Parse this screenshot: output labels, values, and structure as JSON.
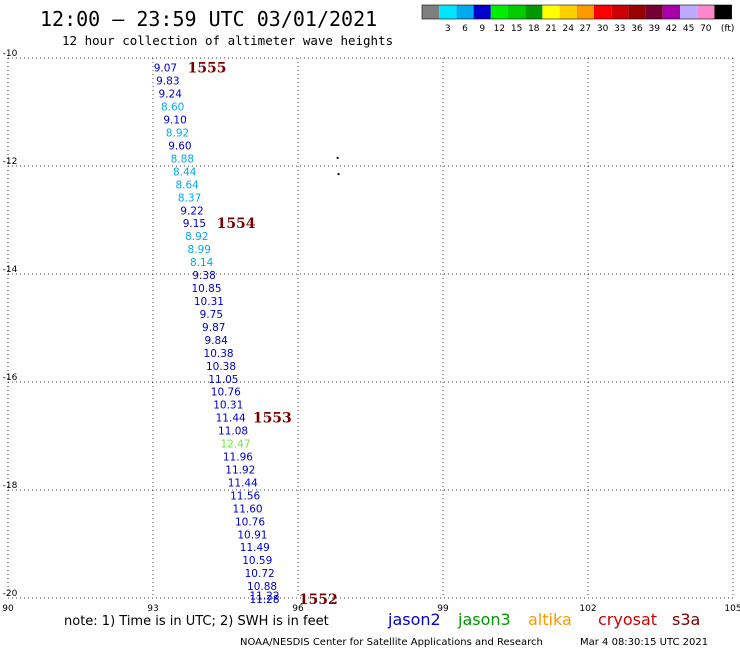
{
  "header": {
    "title": "12:00 – 23:59 UTC 03/01/2021",
    "subtitle": "12 hour collection of altimeter wave heights"
  },
  "color_scale": {
    "unit": "(ft)",
    "bins": [
      {
        "label": "",
        "color": "#7f7f7f"
      },
      {
        "label": "3",
        "color": "#00e5ff"
      },
      {
        "label": "6",
        "color": "#00aaee"
      },
      {
        "label": "9",
        "color": "#0000cc"
      },
      {
        "label": "12",
        "color": "#00ee00"
      },
      {
        "label": "15",
        "color": "#00cc00"
      },
      {
        "label": "18",
        "color": "#009900"
      },
      {
        "label": "21",
        "color": "#ffff00"
      },
      {
        "label": "24",
        "color": "#ffd000"
      },
      {
        "label": "27",
        "color": "#ff9900"
      },
      {
        "label": "30",
        "color": "#ff0000"
      },
      {
        "label": "33",
        "color": "#cc0000"
      },
      {
        "label": "36",
        "color": "#990000"
      },
      {
        "label": "39",
        "color": "#770033"
      },
      {
        "label": "42",
        "color": "#aa00aa"
      },
      {
        "label": "45",
        "color": "#bbaaff"
      },
      {
        "label": "70",
        "color": "#ff88cc"
      },
      {
        "label": "",
        "color": "#000000"
      }
    ]
  },
  "footer": {
    "note": "note: 1) Time is in UTC; 2) SWH is in feet",
    "credit": "NOAA/NESDIS Center for Satellite Applications and Research",
    "timestamp": "Mar  4 08:30:15 UTC 2021",
    "satellites": [
      {
        "name": "jason2",
        "color": "#0000cc"
      },
      {
        "name": "jason3",
        "color": "#009900"
      },
      {
        "name": "altika",
        "color": "#ff9900"
      },
      {
        "name": "cryosat",
        "color": "#cc0000"
      },
      {
        "name": "s3a",
        "color": "#7a0000"
      }
    ]
  },
  "chart_data": {
    "type": "scatter",
    "title": "12:00 – 23:59 UTC 03/01/2021",
    "subtitle": "12 hour collection of altimeter wave heights",
    "xlim": [
      90,
      105
    ],
    "ylim": [
      -20,
      -10
    ],
    "x_ticks": [
      90,
      93,
      96,
      99,
      102,
      105
    ],
    "y_ticks": [
      -10,
      -12,
      -14,
      -16,
      -18,
      -20
    ],
    "grid": true,
    "points": [
      {
        "lon": 93.05,
        "lat": -10.18,
        "swh": 9.07,
        "color": "#0000cc"
      },
      {
        "lon": 93.1,
        "lat": -10.42,
        "swh": 9.83,
        "color": "#0000cc"
      },
      {
        "lon": 93.15,
        "lat": -10.66,
        "swh": 9.24,
        "color": "#0000cc"
      },
      {
        "lon": 93.2,
        "lat": -10.9,
        "swh": 8.6,
        "color": "#00aaee"
      },
      {
        "lon": 93.25,
        "lat": -11.14,
        "swh": 9.1,
        "color": "#0000cc"
      },
      {
        "lon": 93.3,
        "lat": -11.38,
        "swh": 8.92,
        "color": "#00aaee"
      },
      {
        "lon": 93.35,
        "lat": -11.62,
        "swh": 9.6,
        "color": "#0000cc"
      },
      {
        "lon": 93.4,
        "lat": -11.86,
        "swh": 8.88,
        "color": "#00aaee"
      },
      {
        "lon": 93.45,
        "lat": -12.1,
        "swh": 8.44,
        "color": "#00aaee"
      },
      {
        "lon": 93.5,
        "lat": -12.34,
        "swh": 8.64,
        "color": "#00aaee"
      },
      {
        "lon": 93.55,
        "lat": -12.58,
        "swh": 8.37,
        "color": "#00aaee"
      },
      {
        "lon": 93.6,
        "lat": -12.82,
        "swh": 9.22,
        "color": "#0000cc"
      },
      {
        "lon": 93.65,
        "lat": -13.06,
        "swh": 9.15,
        "color": "#0000cc"
      },
      {
        "lon": 93.7,
        "lat": -13.3,
        "swh": 8.92,
        "color": "#00aaee"
      },
      {
        "lon": 93.75,
        "lat": -13.54,
        "swh": 8.99,
        "color": "#00aaee"
      },
      {
        "lon": 93.8,
        "lat": -13.78,
        "swh": 8.14,
        "color": "#00aaee"
      },
      {
        "lon": 93.85,
        "lat": -14.02,
        "swh": 9.38,
        "color": "#0000cc"
      },
      {
        "lon": 93.9,
        "lat": -14.26,
        "swh": 10.85,
        "color": "#0000cc"
      },
      {
        "lon": 93.95,
        "lat": -14.5,
        "swh": 10.31,
        "color": "#0000cc"
      },
      {
        "lon": 94.0,
        "lat": -14.74,
        "swh": 9.75,
        "color": "#0000cc"
      },
      {
        "lon": 94.05,
        "lat": -14.98,
        "swh": 9.87,
        "color": "#0000cc"
      },
      {
        "lon": 94.1,
        "lat": -15.22,
        "swh": 9.84,
        "color": "#0000cc"
      },
      {
        "lon": 94.15,
        "lat": -15.46,
        "swh": 10.38,
        "color": "#0000cc"
      },
      {
        "lon": 94.2,
        "lat": -15.7,
        "swh": 10.38,
        "color": "#0000cc"
      },
      {
        "lon": 94.25,
        "lat": -15.94,
        "swh": 11.05,
        "color": "#0000cc"
      },
      {
        "lon": 94.3,
        "lat": -16.18,
        "swh": 10.76,
        "color": "#0000cc"
      },
      {
        "lon": 94.35,
        "lat": -16.42,
        "swh": 10.31,
        "color": "#0000cc"
      },
      {
        "lon": 94.4,
        "lat": -16.66,
        "swh": 11.44,
        "color": "#0000cc"
      },
      {
        "lon": 94.45,
        "lat": -16.9,
        "swh": 11.08,
        "color": "#0000cc"
      },
      {
        "lon": 94.5,
        "lat": -17.14,
        "swh": 12.47,
        "color": "#66ee33"
      },
      {
        "lon": 94.55,
        "lat": -17.38,
        "swh": 11.96,
        "color": "#0000cc"
      },
      {
        "lon": 94.6,
        "lat": -17.62,
        "swh": 11.92,
        "color": "#0000cc"
      },
      {
        "lon": 94.65,
        "lat": -17.86,
        "swh": 11.44,
        "color": "#0000cc"
      },
      {
        "lon": 94.7,
        "lat": -18.1,
        "swh": 11.56,
        "color": "#0000cc"
      },
      {
        "lon": 94.75,
        "lat": -18.34,
        "swh": 11.6,
        "color": "#0000cc"
      },
      {
        "lon": 94.8,
        "lat": -18.58,
        "swh": 10.76,
        "color": "#0000cc"
      },
      {
        "lon": 94.85,
        "lat": -18.82,
        "swh": 10.91,
        "color": "#0000cc"
      },
      {
        "lon": 94.9,
        "lat": -19.06,
        "swh": 11.49,
        "color": "#0000cc"
      },
      {
        "lon": 94.95,
        "lat": -19.3,
        "swh": 10.59,
        "color": "#0000cc"
      },
      {
        "lon": 95.0,
        "lat": -19.54,
        "swh": 10.72,
        "color": "#0000cc"
      },
      {
        "lon": 95.05,
        "lat": -19.78,
        "swh": 10.88,
        "color": "#0000cc"
      },
      {
        "lon": 95.1,
        "lat": -19.95,
        "swh": 11.22,
        "color": "#0000cc"
      },
      {
        "lon": 95.1,
        "lat": -20.02,
        "swh": 11.28,
        "color": "#0000cc"
      }
    ],
    "pass_labels": [
      {
        "label": "1555",
        "lon": 93.55,
        "lat": -10.18
      },
      {
        "label": "1554",
        "lon": 94.15,
        "lat": -13.06
      },
      {
        "label": "1553",
        "lon": 94.9,
        "lat": -16.66
      },
      {
        "label": "1552",
        "lon": 95.85,
        "lat": -20.02
      }
    ],
    "markers": [
      {
        "lon": 96.82,
        "lat": -11.85
      },
      {
        "lon": 96.84,
        "lat": -12.15
      }
    ]
  }
}
